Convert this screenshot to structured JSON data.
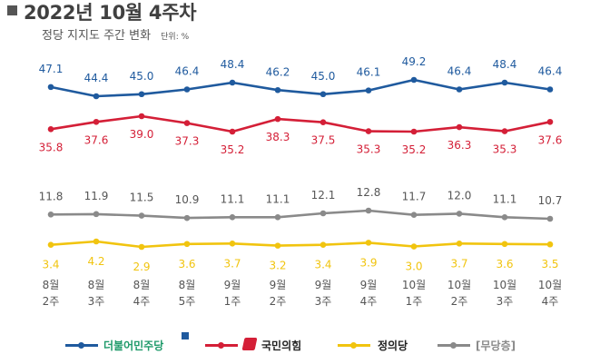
{
  "header": {
    "title": "2022년 10월 4주차",
    "subtitle": "정당 지지도 주간 변화",
    "unit": "단위: %"
  },
  "colors": {
    "minjoo": "#1f5a9e",
    "ppp": "#d41f37",
    "justice": "#f1c40f",
    "none": "#8a8a8a",
    "label_text": "#555555"
  },
  "chart_data": {
    "type": "line",
    "categories": [
      "8월 2주",
      "8월 3주",
      "8월 4주",
      "8월 5주",
      "9월 1주",
      "9월 2주",
      "9월 3주",
      "9월 4주",
      "10월 1주",
      "10월 2주",
      "10월 3주",
      "10월 4주"
    ],
    "category_lines": [
      [
        "8월",
        "2주"
      ],
      [
        "8월",
        "3주"
      ],
      [
        "8월",
        "4주"
      ],
      [
        "8월",
        "5주"
      ],
      [
        "9월",
        "1주"
      ],
      [
        "9월",
        "2주"
      ],
      [
        "9월",
        "3주"
      ],
      [
        "9월",
        "4주"
      ],
      [
        "10월",
        "1주"
      ],
      [
        "10월",
        "2주"
      ],
      [
        "10월",
        "3주"
      ],
      [
        "10월",
        "4주"
      ]
    ],
    "series": [
      {
        "name": "더불어민주당",
        "color": "#1f5a9e",
        "values": [
          47.1,
          44.4,
          45.0,
          46.4,
          48.4,
          46.2,
          45.0,
          46.1,
          49.2,
          46.4,
          48.4,
          46.4
        ]
      },
      {
        "name": "국민의힘",
        "color": "#d41f37",
        "values": [
          35.8,
          37.6,
          39.0,
          37.3,
          35.2,
          38.3,
          37.5,
          35.3,
          35.2,
          36.3,
          35.3,
          37.6
        ]
      },
      {
        "name": "[무당층]",
        "color": "#8a8a8a",
        "values": [
          11.8,
          11.9,
          11.5,
          10.9,
          11.1,
          11.1,
          12.1,
          12.8,
          11.7,
          12.0,
          11.1,
          10.7
        ]
      },
      {
        "name": "정의당",
        "color": "#f1c40f",
        "values": [
          3.4,
          4.2,
          2.9,
          3.6,
          3.7,
          3.2,
          3.4,
          3.9,
          3.0,
          3.7,
          3.6,
          3.5
        ]
      }
    ]
  },
  "legend": {
    "minjoo": "더불어민주당",
    "ppp": "국민의힘",
    "justice": "정의당",
    "none": "[무당층]"
  }
}
